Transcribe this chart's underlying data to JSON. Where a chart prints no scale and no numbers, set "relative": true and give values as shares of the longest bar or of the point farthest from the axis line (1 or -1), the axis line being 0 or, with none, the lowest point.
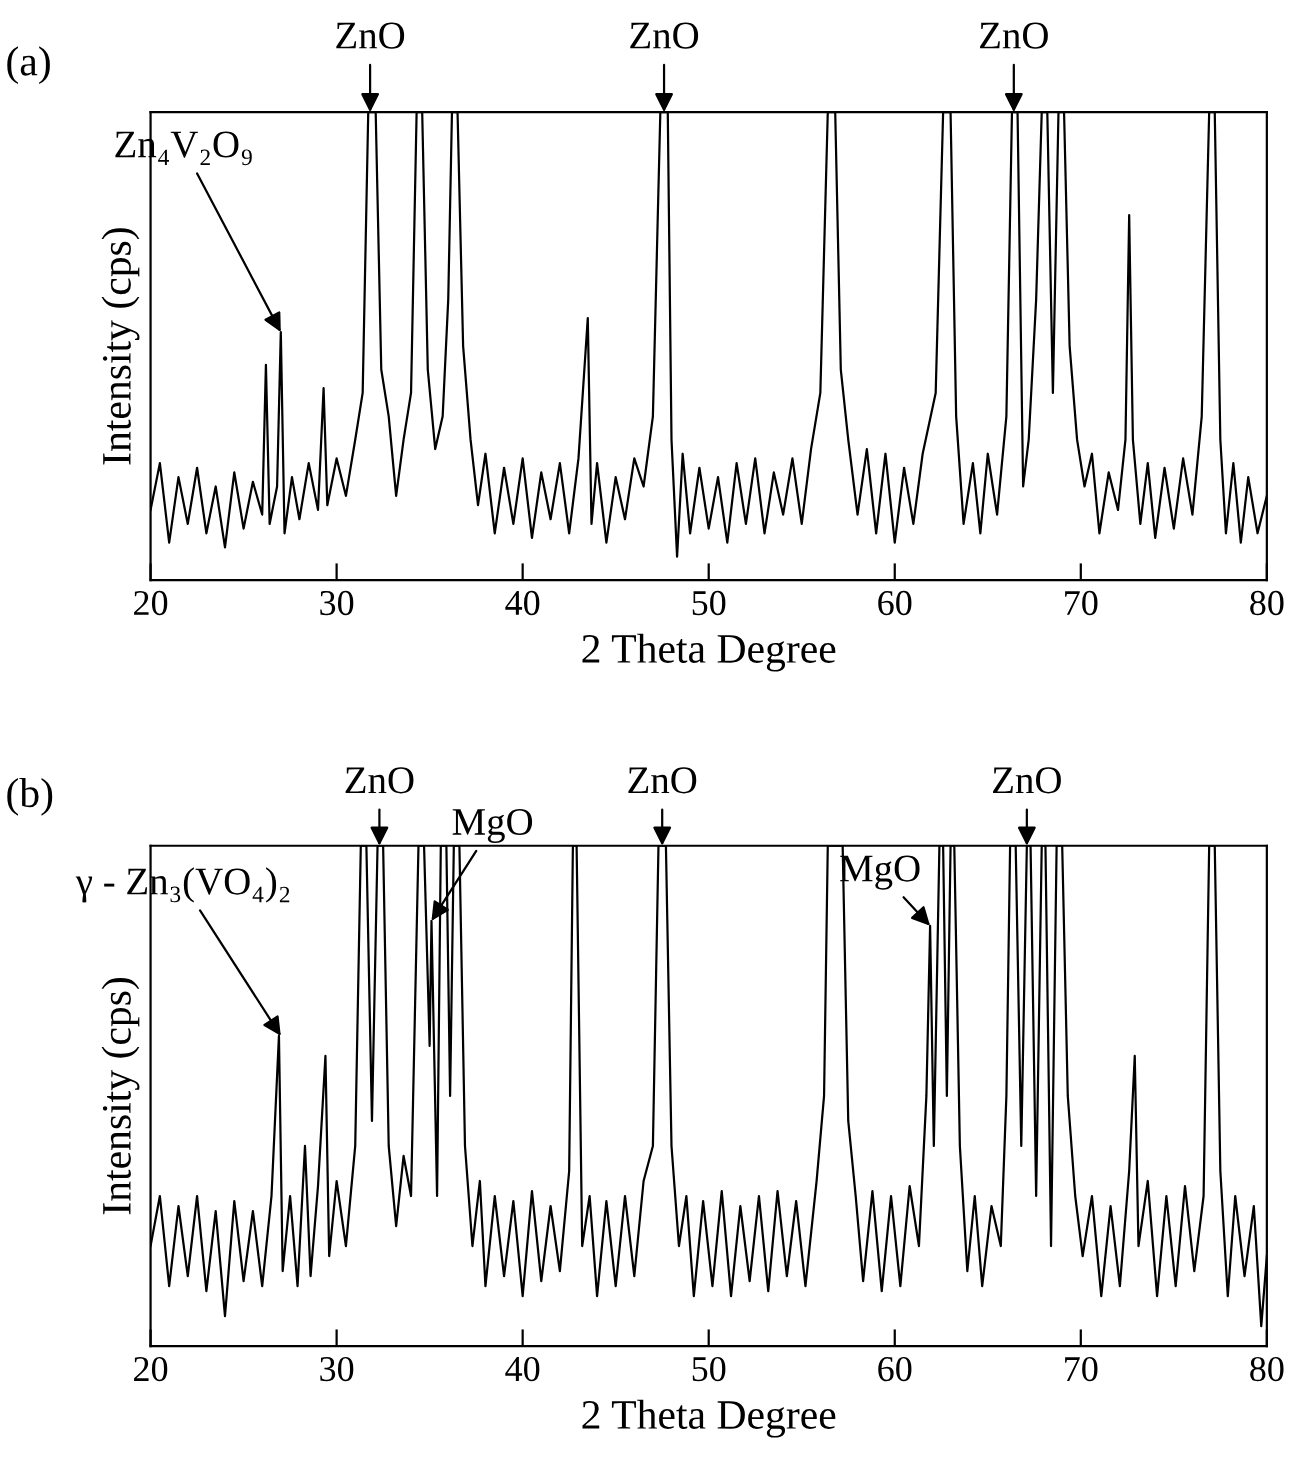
{
  "chart_data": [
    {
      "type": "line",
      "title": "(a)",
      "xlabel": "2 Theta Degree",
      "ylabel": "Intensity (cps)",
      "relative": true,
      "xlim": [
        20,
        80
      ],
      "xticks": [
        20,
        30,
        40,
        50,
        60,
        70,
        80
      ],
      "grid": false,
      "legend": false,
      "marker": "none",
      "line_style": "solid",
      "series": [
        {
          "color": "#000000",
          "x": [
            20,
            20.5,
            21,
            21.5,
            22,
            22.5,
            23,
            23.5,
            24,
            24.5,
            25,
            25.5,
            26.0,
            26.2,
            26.4,
            26.8,
            27.0,
            27.2,
            27.6,
            28,
            28.5,
            29.0,
            29.3,
            29.5,
            30,
            30.5,
            31,
            31.4,
            31.7,
            32.1,
            32.4,
            32.8,
            33.2,
            33.6,
            34.0,
            34.3,
            34.6,
            34.9,
            35.3,
            35.7,
            36.0,
            36.2,
            36.5,
            36.8,
            37.2,
            37.6,
            38,
            38.5,
            39,
            39.5,
            40,
            40.5,
            41,
            41.5,
            42,
            42.5,
            43,
            43.5,
            43.7,
            44,
            44.5,
            45,
            45.5,
            46,
            46.5,
            47.0,
            47.4,
            47.8,
            48.0,
            48.3,
            48.6,
            49,
            49.5,
            50,
            50.5,
            51,
            51.5,
            52,
            52.5,
            53,
            53.5,
            54,
            54.5,
            55,
            55.5,
            56,
            56.4,
            56.8,
            57.1,
            57.5,
            58,
            58.5,
            59,
            59.5,
            60,
            60.5,
            61,
            61.5,
            62.2,
            62.6,
            63.0,
            63.3,
            63.7,
            64.2,
            64.6,
            65,
            65.5,
            66.0,
            66.3,
            66.6,
            66.9,
            67.2,
            67.6,
            67.9,
            68.2,
            68.5,
            68.8,
            69.1,
            69.4,
            69.8,
            70.2,
            70.6,
            71,
            71.5,
            72,
            72.4,
            72.6,
            72.8,
            73.2,
            73.6,
            74,
            74.5,
            75,
            75.5,
            76,
            76.5,
            76.9,
            77.2,
            77.5,
            77.8,
            78.2,
            78.6,
            79,
            79.5,
            80
          ],
          "values": [
            0.15,
            0.25,
            0.08,
            0.22,
            0.12,
            0.24,
            0.1,
            0.2,
            0.07,
            0.23,
            0.11,
            0.21,
            0.14,
            0.46,
            0.12,
            0.2,
            0.53,
            0.1,
            0.22,
            0.13,
            0.25,
            0.15,
            0.41,
            0.16,
            0.26,
            0.18,
            0.3,
            0.4,
            1,
            1,
            0.45,
            0.35,
            0.18,
            0.3,
            0.4,
            1,
            1,
            0.45,
            0.28,
            0.35,
            0.6,
            1,
            1,
            0.5,
            0.3,
            0.16,
            0.27,
            0.1,
            0.24,
            0.12,
            0.26,
            0.09,
            0.23,
            0.13,
            0.25,
            0.1,
            0.26,
            0.56,
            0.12,
            0.25,
            0.08,
            0.22,
            0.13,
            0.26,
            0.2,
            0.35,
            1,
            1,
            0.3,
            0.05,
            0.27,
            0.1,
            0.24,
            0.11,
            0.22,
            0.08,
            0.25,
            0.12,
            0.26,
            0.1,
            0.23,
            0.14,
            0.26,
            0.12,
            0.28,
            0.4,
            1,
            1,
            0.45,
            0.3,
            0.14,
            0.28,
            0.1,
            0.27,
            0.08,
            0.24,
            0.12,
            0.27,
            0.4,
            1,
            1,
            0.35,
            0.12,
            0.25,
            0.1,
            0.27,
            0.14,
            0.35,
            1,
            1,
            0.2,
            0.3,
            0.6,
            1,
            1,
            0.4,
            1,
            1,
            0.5,
            0.3,
            0.2,
            0.27,
            0.1,
            0.23,
            0.15,
            0.3,
            0.78,
            0.3,
            0.12,
            0.25,
            0.09,
            0.24,
            0.11,
            0.26,
            0.14,
            0.35,
            1,
            1,
            0.3,
            0.1,
            0.25,
            0.08,
            0.22,
            0.1,
            0.18
          ]
        }
      ],
      "annotations": [
        {
          "text": "Zn₄V₂O₉",
          "x": 27.0,
          "y": 0.53
        },
        {
          "text": "ZnO",
          "x": 31.8,
          "y": 1
        },
        {
          "text": "ZnO",
          "x": 47.6,
          "y": 1
        },
        {
          "text": "ZnO",
          "x": 66.4,
          "y": 1
        }
      ]
    },
    {
      "type": "line",
      "title": "(b)",
      "xlabel": "2 Theta Degree",
      "ylabel": "Intensity (cps)",
      "relative": true,
      "xlim": [
        20,
        80
      ],
      "xticks": [
        20,
        30,
        40,
        50,
        60,
        70,
        80
      ],
      "grid": false,
      "legend": false,
      "marker": "none",
      "line_style": "solid",
      "series": [
        {
          "color": "#000000",
          "x": [
            20,
            20.5,
            21,
            21.5,
            22,
            22.5,
            23,
            23.5,
            24,
            24.5,
            25,
            25.5,
            26,
            26.5,
            26.9,
            27.1,
            27.5,
            27.9,
            28.3,
            28.6,
            29,
            29.4,
            29.6,
            30,
            30.5,
            31,
            31.3,
            31.6,
            31.9,
            32.2,
            32.5,
            32.8,
            33.2,
            33.6,
            34.0,
            34.4,
            34.7,
            35.0,
            35.1,
            35.4,
            35.6,
            35.9,
            36.1,
            36.3,
            36.6,
            36.9,
            37.3,
            37.7,
            38,
            38.5,
            39,
            39.5,
            40,
            40.5,
            41,
            41.5,
            42,
            42.5,
            42.7,
            42.9,
            43.2,
            43.6,
            44,
            44.5,
            45,
            45.5,
            46,
            46.5,
            47.0,
            47.3,
            47.7,
            48.0,
            48.4,
            48.8,
            49.2,
            49.7,
            50.2,
            50.7,
            51.2,
            51.7,
            52.2,
            52.7,
            53.2,
            53.7,
            54.2,
            54.7,
            55.2,
            55.8,
            56.2,
            56.4,
            56.7,
            56.9,
            57.2,
            57.5,
            57.9,
            58.3,
            58.8,
            59.3,
            59.8,
            60.3,
            60.8,
            61.3,
            61.7,
            61.9,
            62.1,
            62.4,
            62.6,
            62.8,
            63.0,
            63.2,
            63.5,
            63.9,
            64.3,
            64.7,
            65.2,
            65.7,
            66.0,
            66.2,
            66.5,
            66.8,
            67.1,
            67.3,
            67.6,
            67.9,
            68.1,
            68.4,
            68.7,
            69.0,
            69.3,
            69.7,
            70.1,
            70.6,
            71.1,
            71.6,
            72.1,
            72.6,
            72.9,
            73.1,
            73.6,
            74.1,
            74.6,
            75.1,
            75.6,
            76.1,
            76.6,
            76.9,
            77.2,
            77.5,
            77.9,
            78.3,
            78.8,
            79.3,
            79.7,
            80
          ],
          "values": [
            0.2,
            0.3,
            0.12,
            0.28,
            0.14,
            0.3,
            0.11,
            0.27,
            0.06,
            0.29,
            0.13,
            0.27,
            0.12,
            0.3,
            0.62,
            0.15,
            0.3,
            0.12,
            0.4,
            0.14,
            0.32,
            0.58,
            0.18,
            0.33,
            0.2,
            0.4,
            1,
            1,
            0.45,
            1,
            1,
            0.4,
            0.24,
            0.38,
            0.3,
            1,
            1,
            0.6,
            0.85,
            0.3,
            1,
            1,
            0.5,
            1,
            1,
            0.4,
            0.2,
            0.33,
            0.12,
            0.3,
            0.14,
            0.29,
            0.1,
            0.31,
            0.13,
            0.28,
            0.15,
            0.35,
            1,
            1,
            0.2,
            0.3,
            0.1,
            0.29,
            0.12,
            0.3,
            0.14,
            0.33,
            0.4,
            1,
            1,
            0.4,
            0.2,
            0.3,
            0.1,
            0.29,
            0.12,
            0.31,
            0.1,
            0.28,
            0.13,
            0.3,
            0.11,
            0.31,
            0.14,
            0.29,
            0.12,
            0.33,
            0.5,
            1,
            1,
            1,
            1,
            0.45,
            0.3,
            0.13,
            0.31,
            0.11,
            0.3,
            0.12,
            0.32,
            0.2,
            0.5,
            0.84,
            0.4,
            1,
            1,
            0.5,
            1,
            1,
            0.4,
            0.15,
            0.3,
            0.12,
            0.28,
            0.2,
            0.5,
            1,
            1,
            0.4,
            1,
            1,
            0.3,
            1,
            1,
            0.2,
            1,
            1,
            0.5,
            0.3,
            0.18,
            0.3,
            0.1,
            0.28,
            0.12,
            0.35,
            0.58,
            0.2,
            0.33,
            0.1,
            0.3,
            0.12,
            0.32,
            0.15,
            0.3,
            1,
            1,
            0.35,
            0.1,
            0.3,
            0.14,
            0.28,
            0.04,
            0.18
          ]
        }
      ],
      "annotations": [
        {
          "text": "γ - Zn₃(VO₄)₂",
          "x": 27.0,
          "y": 0.62
        },
        {
          "text": "ZnO",
          "x": 32.3,
          "y": 1
        },
        {
          "text": "MgO",
          "x": 35.1,
          "y": 0.85
        },
        {
          "text": "ZnO",
          "x": 47.5,
          "y": 1
        },
        {
          "text": "MgO",
          "x": 61.9,
          "y": 0.84
        },
        {
          "text": "ZnO",
          "x": 67.1,
          "y": 1
        }
      ]
    }
  ]
}
